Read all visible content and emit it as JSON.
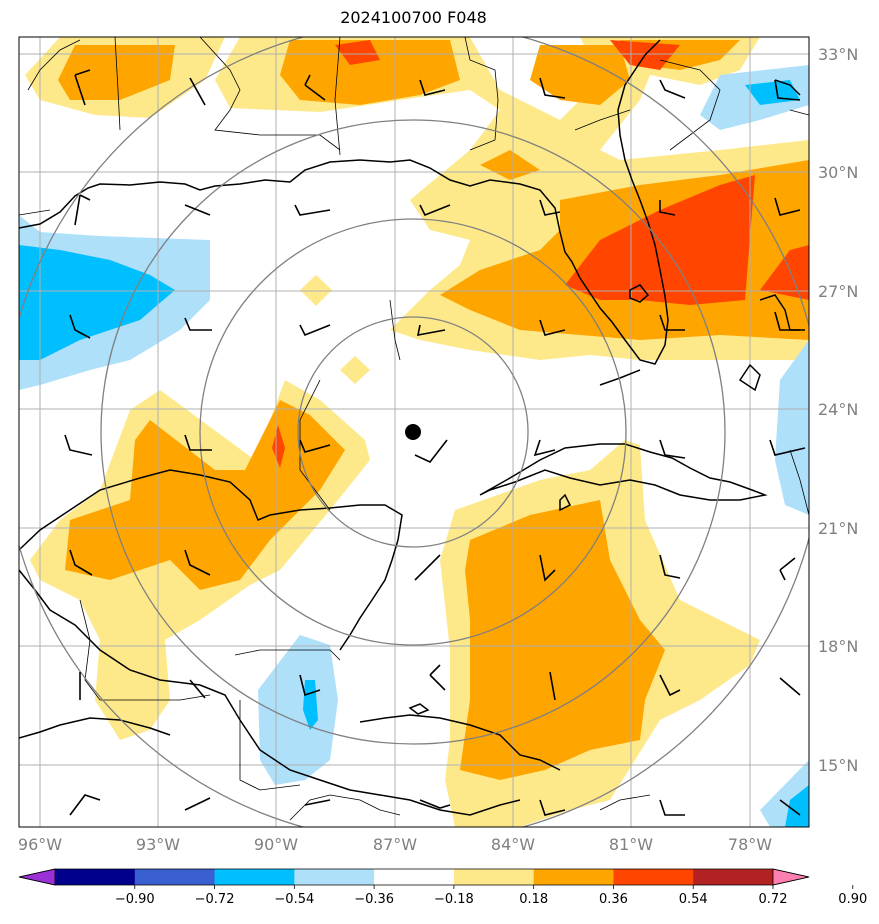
{
  "title": "2024100700 F048",
  "lon_labels": [
    "96°W",
    "93°W",
    "90°W",
    "87°W",
    "84°W",
    "81°W",
    "78°W"
  ],
  "lat_labels": [
    "33°N",
    "30°N",
    "27°N",
    "24°N",
    "21°N",
    "18°N",
    "15°N"
  ],
  "colorbar": {
    "ticks": [
      "−0.90",
      "−0.72",
      "−0.54",
      "−0.36",
      "−0.18",
      "0.18",
      "0.36",
      "0.54",
      "0.72",
      "0.90"
    ],
    "colors": [
      "#9a30d6",
      "#00008c",
      "#3a5fd0",
      "#00bfff",
      "#aee0fa",
      "#ffffff",
      "#fde98a",
      "#ffa500",
      "#ff4500",
      "#b22222",
      "#ff80b0"
    ]
  },
  "colors": {
    "level_0_18": "#fde98a",
    "level_0_36": "#ffa500",
    "level_0_54": "#ff4500",
    "level_neg_0_18": "#aee0fa",
    "level_neg_0_36": "#00bfff",
    "grid": "#b0b0b0",
    "range_rings": "#808080"
  },
  "storm_center_marker": "black-dot"
}
